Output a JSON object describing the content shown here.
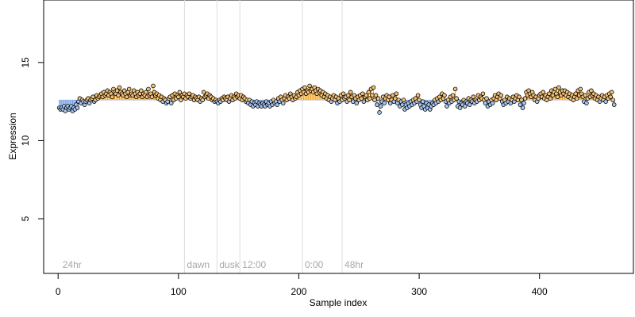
{
  "chart_data": {
    "type": "scatter",
    "title": "",
    "xlabel": "Sample index",
    "ylabel": "Expression",
    "xlim": [
      -12,
      478
    ],
    "ylim": [
      1.5,
      19.0
    ],
    "xticks": [
      0,
      100,
      200,
      300,
      400
    ],
    "yticks": [
      5,
      10,
      15
    ],
    "baseline": 12.6,
    "grid": false,
    "legend": "none",
    "colors": {
      "above": "#f5a623",
      "below": "#6f9de4",
      "point_stroke": "#000000",
      "annotation_line": "#dddddd",
      "annotation_text": "#a8a8a8"
    },
    "annotations": [
      {
        "x": 3,
        "label": "24hr",
        "line": false
      },
      {
        "x": 105,
        "label": "dawn",
        "line": true
      },
      {
        "x": 132,
        "label": "dusk",
        "line": true
      },
      {
        "x": 151,
        "label": "12:00",
        "line": true
      },
      {
        "x": 203,
        "label": "0:00",
        "line": true
      },
      {
        "x": 236,
        "label": "48hr",
        "line": true
      }
    ],
    "segments": [
      {
        "start": 1,
        "values": [
          12.1,
          12.0,
          12.1,
          12.0,
          12.2,
          11.9,
          12.1,
          12.2,
          12.0,
          12.1,
          12.2,
          11.9,
          12.1,
          12.0,
          12.3,
          12.1,
          12.5,
          12.7,
          12.4,
          12.6,
          12.5,
          12.3,
          12.5,
          12.6,
          12.7,
          12.4,
          12.6,
          12.7,
          12.8,
          12.5,
          12.6,
          12.9,
          12.7,
          12.8,
          12.9,
          13.0,
          12.8,
          13.1,
          12.9,
          13.0,
          13.2,
          12.9,
          13.1,
          13.0,
          12.8,
          13.3,
          13.1,
          13.0,
          13.2,
          12.9,
          13.4,
          13.1,
          13.0,
          12.9,
          13.2,
          13.0,
          12.8,
          13.1,
          13.3,
          12.9
        ]
      },
      {
        "start": 61,
        "values": [
          13.0,
          12.9,
          13.2,
          13.0,
          12.8,
          13.1,
          12.9,
          13.0,
          13.2,
          12.8,
          13.0,
          12.9,
          13.1,
          12.8,
          13.3,
          12.9,
          13.0,
          12.8,
          13.5,
          13.1,
          12.9,
          13.0,
          12.7,
          12.9,
          12.6,
          12.8,
          12.5,
          12.7,
          12.6,
          12.4,
          12.5,
          12.7,
          12.8,
          12.4,
          12.9,
          12.6,
          13.0,
          12.7,
          12.9,
          12.8,
          13.1,
          12.6,
          12.9,
          12.8,
          13.0,
          12.7,
          12.9,
          12.8,
          13.0,
          12.7,
          12.8,
          12.9,
          12.6,
          12.8,
          12.7,
          12.6,
          12.8,
          12.5,
          12.7,
          12.6
        ]
      },
      {
        "start": 121,
        "values": [
          13.1,
          12.8,
          12.9,
          13.0,
          12.7,
          12.9,
          12.8,
          12.6,
          12.7,
          12.5,
          12.6,
          12.5,
          12.4,
          12.6,
          12.5,
          12.7,
          12.6,
          12.8,
          12.7,
          12.6,
          12.8,
          12.5,
          12.7,
          12.9,
          12.6,
          12.8,
          12.7,
          13.0,
          12.8,
          12.9,
          12.7,
          12.9,
          12.6,
          12.8,
          12.7,
          12.5,
          12.6,
          12.4,
          12.6,
          12.3,
          12.5,
          12.2,
          12.4,
          12.3,
          12.5,
          12.2,
          12.4,
          12.3,
          12.2,
          12.4,
          12.3,
          12.2,
          12.5,
          12.3,
          12.4,
          12.2,
          12.5,
          12.3,
          12.6,
          12.4
        ]
      },
      {
        "start": 181,
        "values": [
          12.5,
          12.3,
          12.7,
          12.5,
          12.8,
          12.6,
          12.4,
          12.7,
          12.9,
          12.6,
          12.8,
          12.7,
          13.0,
          12.8,
          12.6,
          12.9,
          12.7,
          12.8,
          13.1,
          12.9,
          13.2,
          13.0,
          13.3,
          13.1,
          13.4,
          13.0,
          13.2,
          13.1,
          13.5,
          13.2,
          13.3,
          13.1,
          13.4,
          13.2,
          13.0,
          13.3,
          13.1,
          13.2,
          12.9,
          13.1,
          12.8,
          13.0,
          12.7,
          12.9,
          12.6,
          12.8,
          12.5,
          12.7,
          12.9,
          12.6,
          12.8,
          12.4,
          12.7,
          12.5,
          12.9,
          12.6,
          13.0,
          12.7,
          12.8,
          12.5
        ]
      },
      {
        "start": 241,
        "values": [
          12.9,
          12.6,
          13.1,
          12.8,
          12.5,
          12.9,
          12.7,
          12.4,
          12.8,
          12.6,
          12.9,
          12.7,
          13.0,
          12.5,
          12.8,
          12.9,
          12.6,
          13.1,
          12.7,
          13.3,
          12.9,
          13.4,
          12.6,
          12.9,
          12.3,
          12.7,
          11.8,
          12.2,
          12.5,
          12.8,
          12.4,
          12.7,
          12.9,
          12.6,
          12.8,
          12.4,
          12.6,
          12.9,
          12.5,
          12.7,
          13.0,
          12.4,
          12.6,
          12.2,
          12.5,
          12.3,
          12.6,
          12.0,
          12.3,
          12.1,
          12.4,
          12.2,
          12.5,
          12.3,
          12.6,
          12.4,
          12.7,
          12.5,
          12.9,
          12.6
        ]
      },
      {
        "start": 301,
        "values": [
          12.3,
          12.1,
          12.5,
          12.2,
          12.0,
          12.4,
          12.1,
          12.3,
          12.0,
          12.2,
          12.4,
          12.3,
          12.6,
          12.4,
          12.7,
          12.5,
          12.8,
          12.6,
          13.0,
          12.7,
          12.9,
          12.5,
          12.2,
          12.6,
          12.4,
          12.8,
          12.5,
          12.9,
          12.6,
          13.3,
          12.7,
          12.2,
          12.5,
          12.1,
          12.4,
          12.3,
          12.6,
          12.2,
          12.5,
          12.4,
          12.7,
          12.3,
          12.6,
          12.5,
          12.8,
          12.4,
          12.6,
          12.5,
          12.9,
          12.6,
          12.8,
          12.7,
          13.0,
          12.6,
          12.4,
          12.7,
          12.2,
          12.5,
          12.3,
          12.6
        ]
      },
      {
        "start": 361,
        "values": [
          12.4,
          12.7,
          12.9,
          12.6,
          12.8,
          13.0,
          12.7,
          12.9,
          12.5,
          12.3,
          12.6,
          12.4,
          12.8,
          12.5,
          12.7,
          12.4,
          12.6,
          12.8,
          12.5,
          12.7,
          12.9,
          12.6,
          12.8,
          12.3,
          12.6,
          12.1,
          12.4,
          12.7,
          13.1,
          12.9,
          13.2,
          13.0,
          12.8,
          13.1,
          12.9,
          12.6,
          12.8,
          12.5,
          12.7,
          12.9,
          13.0,
          12.8,
          13.1,
          12.7,
          12.9,
          12.6,
          12.8,
          13.0,
          12.7,
          13.2,
          12.9,
          13.1,
          13.3,
          13.0,
          12.8,
          13.4,
          13.1,
          12.9,
          13.2,
          13.0
        ]
      },
      {
        "start": 421,
        "values": [
          13.2,
          12.9,
          13.1,
          12.8,
          13.0,
          12.7,
          12.9,
          12.6,
          12.8,
          13.0,
          12.7,
          13.2,
          12.9,
          13.3,
          13.0,
          12.8,
          12.5,
          12.9,
          12.4,
          12.7,
          13.1,
          12.8,
          13.2,
          12.9,
          13.0,
          12.7,
          12.9,
          12.6,
          12.8,
          12.5,
          12.7,
          12.9,
          12.6,
          12.8,
          12.5,
          12.9,
          12.7,
          13.0,
          12.8,
          13.1,
          12.6,
          12.3
        ]
      }
    ]
  }
}
